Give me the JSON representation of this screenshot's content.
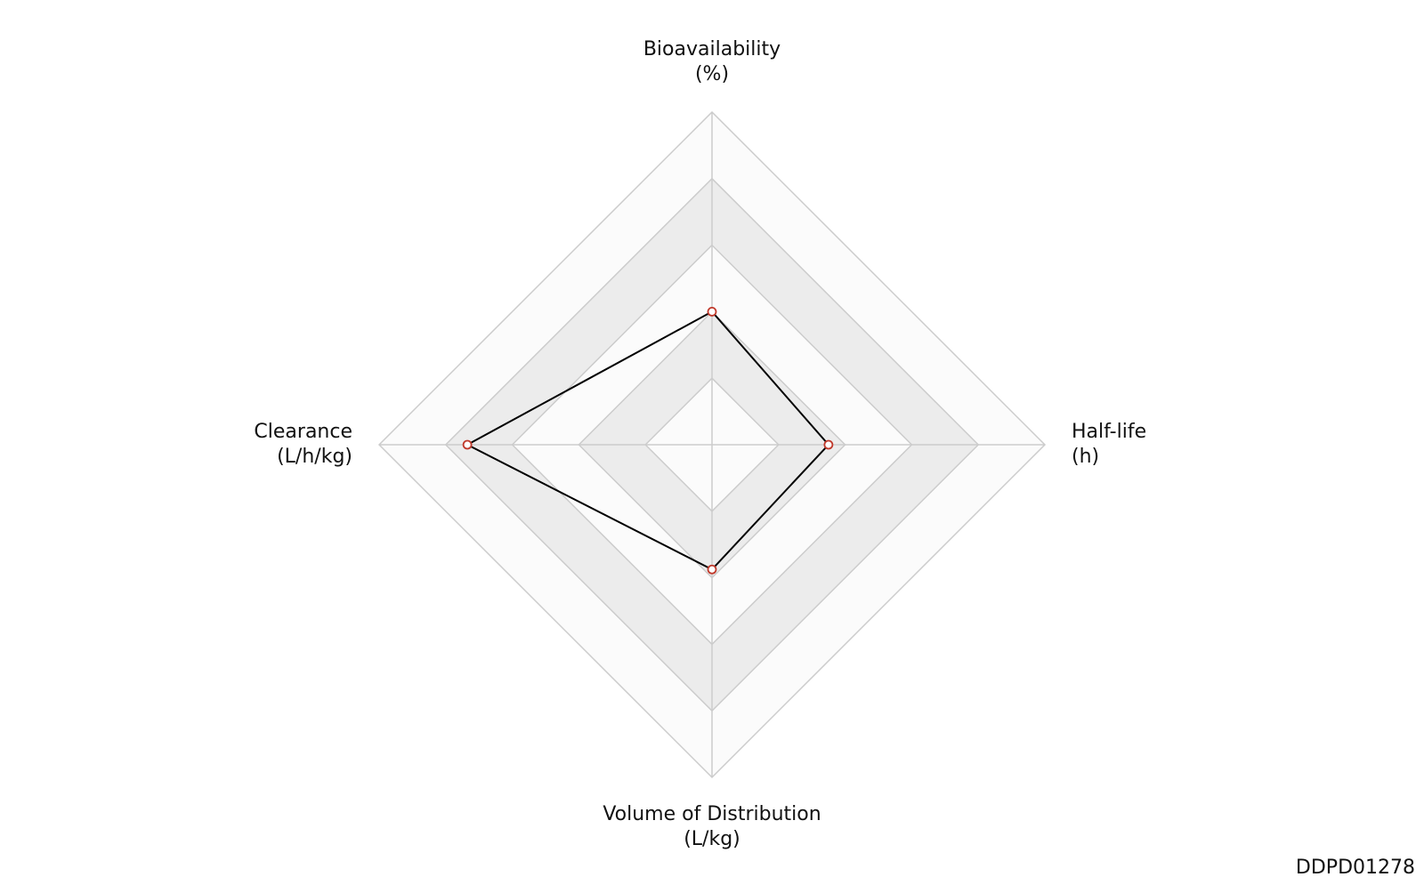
{
  "chart_data": {
    "type": "radar",
    "categories": [
      [
        "Bioavailability",
        "(%)"
      ],
      [
        "Half-life",
        "(h)"
      ],
      [
        "Volume of Distribution",
        "(L/kg)"
      ],
      [
        "Clearance",
        "(L/h/kg)"
      ]
    ],
    "values": [
      0.4,
      0.35,
      0.375,
      0.735
    ],
    "rlim": [
      0,
      1
    ],
    "rticks": [
      0.2,
      0.4,
      0.6,
      0.8,
      1
    ],
    "line_color": "#000000",
    "marker_color": "#c0392b",
    "grid": true
  },
  "watermark": "DDPD01278"
}
